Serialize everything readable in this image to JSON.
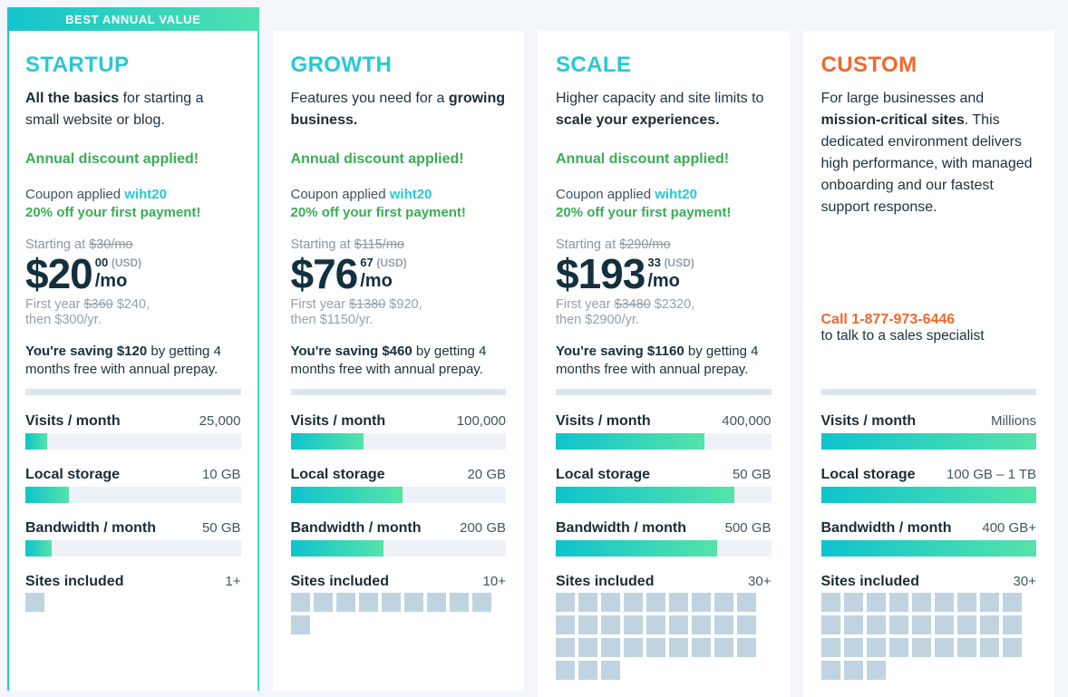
{
  "badge": {
    "label": "BEST ANNUAL VALUE"
  },
  "colors": {
    "page_background": "#f3f6fa",
    "accent_cyan": "#26c9d3",
    "accent_green": "#3aad56",
    "accent_orange": "#f2682c",
    "price_navy": "#12303e",
    "muted_gray": "#95a1ab",
    "bar_gradient_start": "#0fc3cd",
    "bar_gradient_end": "#55e3a9",
    "bar_track": "#eef2f7",
    "site_square": "#c0d3e1",
    "divider": "#dce6ee",
    "highlight_border_left": "#1cc7d0",
    "highlight_border_right": "#45ddbb"
  },
  "plans": [
    {
      "name": "STARTUP",
      "desc_pre": "",
      "desc_bold": "All the basics",
      "desc_post": " for starting a small website or blog.",
      "discount_note": "Annual discount applied!",
      "coupon_prefix": "Coupon applied ",
      "coupon_code": "wiht20",
      "coupon_line2": "20% off your first payment!",
      "pricing": {
        "starting_prefix": "Starting at ",
        "starting_strike": "$30/mo",
        "price": "$20",
        "cents": "00",
        "currency": "(USD)",
        "per": "/mo",
        "first_year_prefix": "First year ",
        "first_year_strike": "$360",
        "first_year_new": " $240,",
        "then_line": "then $300/yr.",
        "saving_bold": "You're saving $120",
        "saving_rest": " by getting 4 months free with annual prepay."
      },
      "stats": {
        "visits": {
          "label": "Visits / month",
          "value": "25,000",
          "pct": 10
        },
        "storage": {
          "label": "Local storage",
          "value": "10 GB",
          "pct": 20
        },
        "bandwidth": {
          "label": "Bandwidth / month",
          "value": "50 GB",
          "pct": 12
        },
        "sites": {
          "label": "Sites included",
          "value": "1+",
          "count": 1
        }
      }
    },
    {
      "name": "GROWTH",
      "desc_pre": "Features you need for a ",
      "desc_bold": "growing business.",
      "desc_post": "",
      "discount_note": "Annual discount applied!",
      "coupon_prefix": "Coupon applied ",
      "coupon_code": "wiht20",
      "coupon_line2": "20% off your first payment!",
      "pricing": {
        "starting_prefix": "Starting at ",
        "starting_strike": "$115/mo",
        "price": "$76",
        "cents": "67",
        "currency": "(USD)",
        "per": "/mo",
        "first_year_prefix": "First year ",
        "first_year_strike": "$1380",
        "first_year_new": " $920,",
        "then_line": "then $1150/yr.",
        "saving_bold": "You're saving $460",
        "saving_rest": " by getting 4 months free with annual prepay."
      },
      "stats": {
        "visits": {
          "label": "Visits / month",
          "value": "100,000",
          "pct": 34
        },
        "storage": {
          "label": "Local storage",
          "value": "20 GB",
          "pct": 52
        },
        "bandwidth": {
          "label": "Bandwidth / month",
          "value": "200 GB",
          "pct": 43
        },
        "sites": {
          "label": "Sites included",
          "value": "10+",
          "count": 10
        }
      }
    },
    {
      "name": "SCALE",
      "desc_pre": "Higher capacity and site limits to ",
      "desc_bold": "scale your experiences.",
      "desc_post": "",
      "discount_note": "Annual discount applied!",
      "coupon_prefix": "Coupon applied ",
      "coupon_code": "wiht20",
      "coupon_line2": "20% off your first payment!",
      "pricing": {
        "starting_prefix": "Starting at ",
        "starting_strike": "$290/mo",
        "price": "$193",
        "cents": "33",
        "currency": "(USD)",
        "per": "/mo",
        "first_year_prefix": "First year ",
        "first_year_strike": "$3480",
        "first_year_new": " $2320,",
        "then_line": "then $2900/yr.",
        "saving_bold": "You're saving $1160",
        "saving_rest": " by getting 4 months free with annual prepay."
      },
      "stats": {
        "visits": {
          "label": "Visits / month",
          "value": "400,000",
          "pct": 69
        },
        "storage": {
          "label": "Local storage",
          "value": "50 GB",
          "pct": 83
        },
        "bandwidth": {
          "label": "Bandwidth / month",
          "value": "500 GB",
          "pct": 75
        },
        "sites": {
          "label": "Sites included",
          "value": "30+",
          "count": 30
        }
      }
    },
    {
      "name": "CUSTOM",
      "desc_pre": "For large businesses and ",
      "desc_bold": "mission-critical sites",
      "desc_post": ". This dedicated environment delivers high performance, with managed onboarding and our fastest support response.",
      "call": {
        "phone_label": "Call 1-877-973-6446",
        "sub": "to talk to a sales specialist"
      },
      "stats": {
        "visits": {
          "label": "Visits / month",
          "value": "Millions",
          "pct": 100
        },
        "storage": {
          "label": "Local storage",
          "value": "100 GB – 1 TB",
          "pct": 100
        },
        "bandwidth": {
          "label": "Bandwidth / month",
          "value": "400 GB+",
          "pct": 100
        },
        "sites": {
          "label": "Sites included",
          "value": "30+",
          "count": 30
        }
      }
    }
  ]
}
